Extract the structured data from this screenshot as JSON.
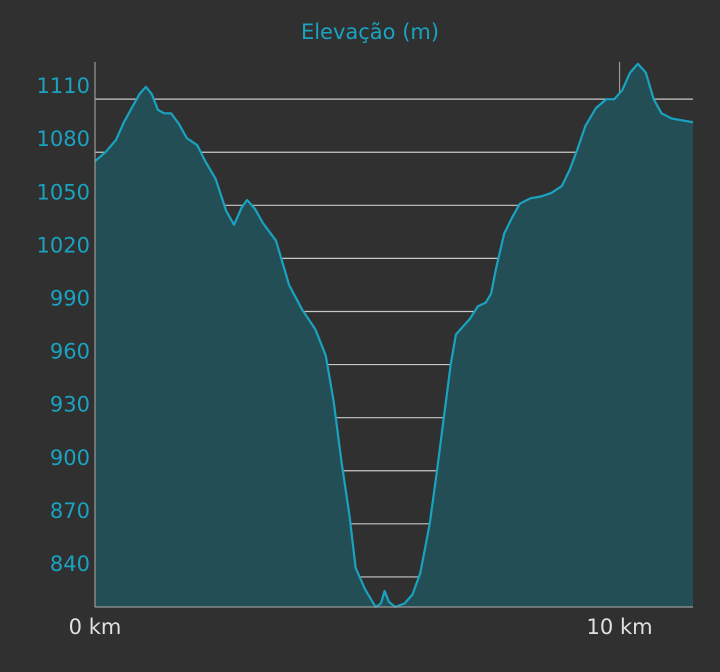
{
  "colors": {
    "background": "#303030",
    "accent": "#1aa3c0",
    "area_fill": "#234e55",
    "grid": "#c8c8c8",
    "axis": "#9a9a9a",
    "x_tick_text": "#e0e0e0"
  },
  "chart_data": {
    "type": "area",
    "title": "Elevação (m)",
    "x_unit": "km",
    "y_unit": "m",
    "xlim": [
      0,
      11.4
    ],
    "ylim": [
      823,
      1131
    ],
    "x_tick_labels": [
      {
        "value": 0,
        "label": "0 km"
      },
      {
        "value": 10,
        "label": "10 km"
      }
    ],
    "y_ticks": [
      840,
      870,
      900,
      930,
      960,
      990,
      1020,
      1050,
      1080,
      1110
    ],
    "grid": {
      "horizontal": true,
      "vertical_at_x": [
        10
      ]
    },
    "series": [
      {
        "values": [
          [
            0.0,
            1075
          ],
          [
            0.2,
            1080
          ],
          [
            0.4,
            1087
          ],
          [
            0.55,
            1097
          ],
          [
            0.7,
            1105
          ],
          [
            0.85,
            1113
          ],
          [
            0.97,
            1117
          ],
          [
            1.08,
            1113
          ],
          [
            1.2,
            1104
          ],
          [
            1.32,
            1102
          ],
          [
            1.45,
            1102
          ],
          [
            1.6,
            1096
          ],
          [
            1.75,
            1088
          ],
          [
            1.95,
            1084
          ],
          [
            2.1,
            1075
          ],
          [
            2.3,
            1065
          ],
          [
            2.5,
            1047
          ],
          [
            2.65,
            1039
          ],
          [
            2.8,
            1049
          ],
          [
            2.9,
            1053
          ],
          [
            3.05,
            1048
          ],
          [
            3.2,
            1040
          ],
          [
            3.45,
            1030
          ],
          [
            3.7,
            1005
          ],
          [
            3.95,
            991
          ],
          [
            4.2,
            980
          ],
          [
            4.4,
            965
          ],
          [
            4.55,
            939
          ],
          [
            4.7,
            905
          ],
          [
            4.85,
            875
          ],
          [
            4.97,
            845
          ],
          [
            5.15,
            833
          ],
          [
            5.35,
            823
          ],
          [
            5.45,
            825
          ],
          [
            5.52,
            832
          ],
          [
            5.6,
            826
          ],
          [
            5.72,
            823
          ],
          [
            5.9,
            825
          ],
          [
            6.05,
            830
          ],
          [
            6.2,
            842
          ],
          [
            6.38,
            870
          ],
          [
            6.52,
            900
          ],
          [
            6.65,
            930
          ],
          [
            6.78,
            960
          ],
          [
            6.88,
            977
          ],
          [
            7.15,
            986
          ],
          [
            7.3,
            993
          ],
          [
            7.45,
            995
          ],
          [
            7.55,
            1000
          ],
          [
            7.65,
            1015
          ],
          [
            7.8,
            1034
          ],
          [
            7.95,
            1043
          ],
          [
            8.1,
            1051
          ],
          [
            8.3,
            1054
          ],
          [
            8.5,
            1055
          ],
          [
            8.7,
            1057
          ],
          [
            8.9,
            1061
          ],
          [
            9.05,
            1070
          ],
          [
            9.2,
            1082
          ],
          [
            9.35,
            1095
          ],
          [
            9.55,
            1105
          ],
          [
            9.75,
            1110
          ],
          [
            9.9,
            1110
          ],
          [
            10.05,
            1115
          ],
          [
            10.2,
            1125
          ],
          [
            10.35,
            1130
          ],
          [
            10.5,
            1125
          ],
          [
            10.65,
            1110
          ],
          [
            10.8,
            1102
          ],
          [
            11.0,
            1099
          ],
          [
            11.2,
            1098
          ],
          [
            11.4,
            1097
          ]
        ]
      }
    ]
  }
}
